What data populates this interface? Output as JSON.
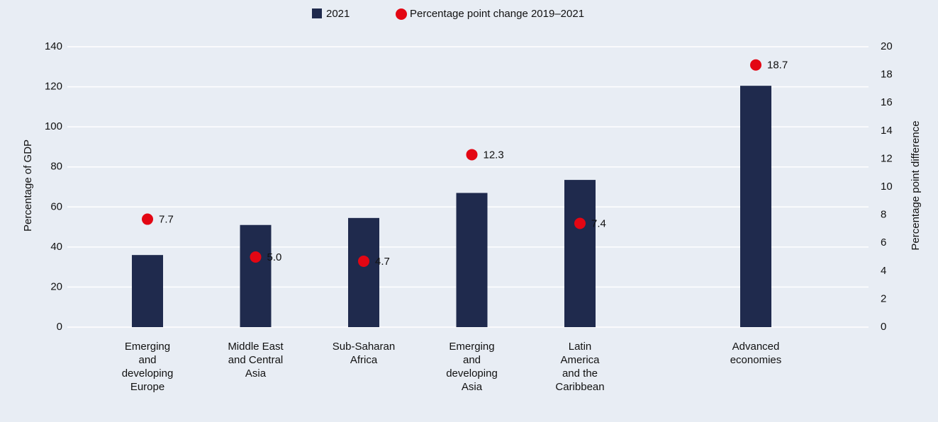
{
  "chart_data": {
    "type": "bar",
    "categories": [
      "Emerging\nand\ndeveloping\nEurope",
      "Middle East\nand Central\nAsia",
      "Sub-Saharan\nAfrica",
      "Emerging\nand\ndeveloping\nAsia",
      "Latin\nAmerica\nand the\nCaribbean",
      "Advanced\neconomies"
    ],
    "series": [
      {
        "name": "2021",
        "color": "#1f2a4d",
        "values": [
          36,
          51,
          54.5,
          67,
          73.5,
          120.5
        ]
      },
      {
        "name": "Percentage point change 2019–2021",
        "color": "#e30613",
        "type": "scatter",
        "axis": "y2",
        "values": [
          7.7,
          5.0,
          4.7,
          12.3,
          7.4,
          18.7
        ],
        "value_labels": [
          "7.7",
          "5.0",
          "4.7",
          "12.3",
          "7.4",
          "18.7"
        ]
      }
    ],
    "ylabel": "Percentage of GDP",
    "y2label": "Percentage point difference",
    "ylim": [
      0,
      140
    ],
    "yticks": [
      0,
      20,
      40,
      60,
      80,
      100,
      120,
      140
    ],
    "y2lim": [
      0,
      20
    ],
    "y2ticks": [
      0,
      2,
      4,
      6,
      8,
      10,
      12,
      14,
      16,
      18,
      20
    ],
    "grid": true,
    "legend": "top"
  }
}
